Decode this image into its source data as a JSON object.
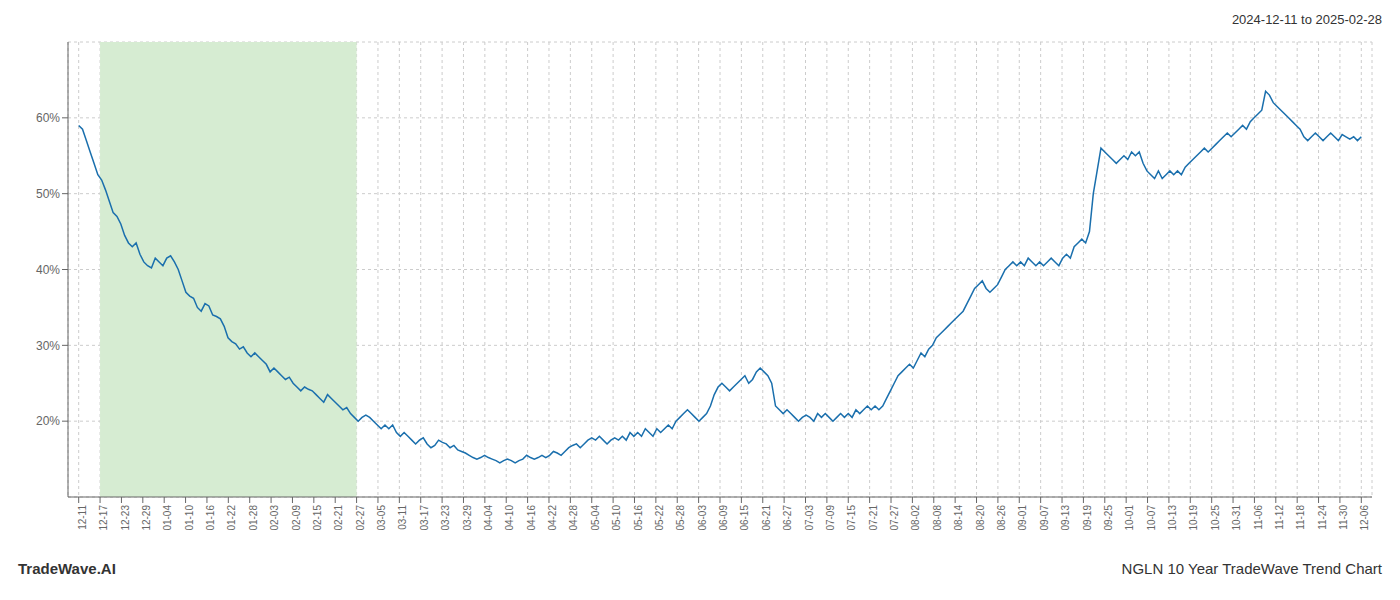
{
  "chart_data": {
    "type": "line",
    "title": "NGLN 10 Year TradeWave Trend Chart",
    "subtitle": "2024-12-11 to 2025-02-28",
    "annotations": [
      "TradeWave.AI"
    ],
    "color": "#1a6fad",
    "grid": true,
    "xlim": [
      -0.5,
      60.5
    ],
    "xticks": [
      {
        "value": 0,
        "label": "12-11"
      },
      {
        "value": 1,
        "label": "12-17"
      },
      {
        "value": 2,
        "label": "12-23"
      },
      {
        "value": 3,
        "label": "12-29"
      },
      {
        "value": 4,
        "label": "01-04"
      },
      {
        "value": 5,
        "label": "01-10"
      },
      {
        "value": 6,
        "label": "01-16"
      },
      {
        "value": 7,
        "label": "01-22"
      },
      {
        "value": 8,
        "label": "01-28"
      },
      {
        "value": 9,
        "label": "02-03"
      },
      {
        "value": 10,
        "label": "02-09"
      },
      {
        "value": 11,
        "label": "02-15"
      },
      {
        "value": 12,
        "label": "02-21"
      },
      {
        "value": 13,
        "label": "02-27"
      },
      {
        "value": 14,
        "label": "03-05"
      },
      {
        "value": 15,
        "label": "03-11"
      },
      {
        "value": 16,
        "label": "03-17"
      },
      {
        "value": 17,
        "label": "03-23"
      },
      {
        "value": 18,
        "label": "03-29"
      },
      {
        "value": 19,
        "label": "04-04"
      },
      {
        "value": 20,
        "label": "04-10"
      },
      {
        "value": 21,
        "label": "04-16"
      },
      {
        "value": 22,
        "label": "04-22"
      },
      {
        "value": 23,
        "label": "04-28"
      },
      {
        "value": 24,
        "label": "05-04"
      },
      {
        "value": 25,
        "label": "05-10"
      },
      {
        "value": 26,
        "label": "05-16"
      },
      {
        "value": 27,
        "label": "05-22"
      },
      {
        "value": 28,
        "label": "05-28"
      },
      {
        "value": 29,
        "label": "06-03"
      },
      {
        "value": 30,
        "label": "06-09"
      },
      {
        "value": 31,
        "label": "06-15"
      },
      {
        "value": 32,
        "label": "06-21"
      },
      {
        "value": 33,
        "label": "06-27"
      },
      {
        "value": 34,
        "label": "07-03"
      },
      {
        "value": 35,
        "label": "07-09"
      },
      {
        "value": 36,
        "label": "07-15"
      },
      {
        "value": 37,
        "label": "07-21"
      },
      {
        "value": 38,
        "label": "07-27"
      },
      {
        "value": 39,
        "label": "08-02"
      },
      {
        "value": 40,
        "label": "08-08"
      },
      {
        "value": 41,
        "label": "08-14"
      },
      {
        "value": 42,
        "label": "08-20"
      },
      {
        "value": 43,
        "label": "08-26"
      },
      {
        "value": 44,
        "label": "09-01"
      },
      {
        "value": 45,
        "label": "09-07"
      },
      {
        "value": 46,
        "label": "09-13"
      },
      {
        "value": 47,
        "label": "09-19"
      },
      {
        "value": 48,
        "label": "09-25"
      },
      {
        "value": 49,
        "label": "10-01"
      },
      {
        "value": 50,
        "label": "10-07"
      },
      {
        "value": 51,
        "label": "10-13"
      },
      {
        "value": 52,
        "label": "10-19"
      },
      {
        "value": 53,
        "label": "10-25"
      },
      {
        "value": 54,
        "label": "10-31"
      },
      {
        "value": 55,
        "label": "11-06"
      },
      {
        "value": 56,
        "label": "11-12"
      },
      {
        "value": 57,
        "label": "11-18"
      },
      {
        "value": 58,
        "label": "11-24"
      },
      {
        "value": 59,
        "label": "11-30"
      },
      {
        "value": 60,
        "label": "12-06"
      }
    ],
    "ylim": [
      10,
      70
    ],
    "yticks": [
      {
        "value": 20,
        "label": "20%"
      },
      {
        "value": 30,
        "label": "30%"
      },
      {
        "value": 40,
        "label": "40%"
      },
      {
        "value": 50,
        "label": "50%"
      },
      {
        "value": 60,
        "label": "60%"
      }
    ],
    "shade": {
      "x": [
        1,
        13
      ],
      "color": "#d6ecd2"
    },
    "values": [
      59.0,
      58.5,
      57.0,
      55.5,
      54.0,
      52.5,
      51.8,
      50.5,
      49.0,
      47.5,
      47.0,
      46.0,
      44.5,
      43.5,
      43.0,
      43.5,
      42.0,
      41.0,
      40.5,
      40.2,
      41.5,
      41.0,
      40.5,
      41.5,
      41.8,
      41.0,
      40.0,
      38.5,
      37.0,
      36.5,
      36.2,
      35.0,
      34.5,
      35.5,
      35.2,
      34.0,
      33.8,
      33.5,
      32.5,
      31.0,
      30.5,
      30.2,
      29.5,
      29.8,
      29.0,
      28.5,
      29.0,
      28.5,
      28.0,
      27.5,
      26.5,
      27.0,
      26.5,
      26.0,
      25.5,
      25.8,
      25.0,
      24.5,
      24.0,
      24.5,
      24.2,
      24.0,
      23.5,
      23.0,
      22.5,
      23.5,
      23.0,
      22.5,
      22.0,
      21.5,
      21.8,
      21.0,
      20.5,
      20.0,
      20.5,
      20.8,
      20.5,
      20.0,
      19.5,
      19.0,
      19.5,
      19.0,
      19.5,
      18.5,
      18.0,
      18.5,
      18.0,
      17.5,
      17.0,
      17.5,
      17.8,
      17.0,
      16.5,
      16.8,
      17.5,
      17.2,
      17.0,
      16.5,
      16.8,
      16.2,
      16.0,
      15.8,
      15.5,
      15.2,
      15.0,
      15.2,
      15.5,
      15.2,
      15.0,
      14.8,
      14.5,
      14.8,
      15.0,
      14.8,
      14.5,
      14.8,
      15.0,
      15.5,
      15.2,
      15.0,
      15.2,
      15.5,
      15.2,
      15.5,
      16.0,
      15.8,
      15.5,
      16.0,
      16.5,
      16.8,
      17.0,
      16.5,
      17.0,
      17.5,
      17.8,
      17.5,
      18.0,
      17.5,
      17.0,
      17.5,
      17.8,
      17.5,
      18.0,
      17.5,
      18.5,
      18.0,
      18.5,
      18.0,
      19.0,
      18.5,
      18.0,
      19.0,
      18.5,
      19.0,
      19.5,
      19.0,
      20.0,
      20.5,
      21.0,
      21.5,
      21.0,
      20.5,
      20.0,
      20.5,
      21.0,
      22.0,
      23.5,
      24.5,
      25.0,
      24.5,
      24.0,
      24.5,
      25.0,
      25.5,
      26.0,
      25.0,
      25.5,
      26.5,
      27.0,
      26.5,
      26.0,
      25.0,
      22.0,
      21.5,
      21.0,
      21.5,
      21.0,
      20.5,
      20.0,
      20.5,
      20.8,
      20.5,
      20.0,
      21.0,
      20.5,
      21.0,
      20.5,
      20.0,
      20.5,
      21.0,
      20.5,
      21.0,
      20.5,
      21.5,
      21.0,
      21.5,
      22.0,
      21.5,
      22.0,
      21.5,
      22.0,
      23.0,
      24.0,
      25.0,
      26.0,
      26.5,
      27.0,
      27.5,
      27.0,
      28.0,
      29.0,
      28.5,
      29.5,
      30.0,
      31.0,
      31.5,
      32.0,
      32.5,
      33.0,
      33.5,
      34.0,
      34.5,
      35.5,
      36.5,
      37.5,
      38.0,
      38.5,
      37.5,
      37.0,
      37.5,
      38.0,
      39.0,
      40.0,
      40.5,
      41.0,
      40.5,
      41.0,
      40.5,
      41.5,
      41.0,
      40.5,
      41.0,
      40.5,
      41.0,
      41.5,
      41.0,
      40.5,
      41.5,
      42.0,
      41.5,
      43.0,
      43.5,
      44.0,
      43.5,
      45.0,
      50.0,
      53.0,
      56.0,
      55.5,
      55.0,
      54.5,
      54.0,
      54.5,
      55.0,
      54.5,
      55.5,
      55.0,
      55.5,
      54.0,
      53.0,
      52.5,
      52.0,
      53.0,
      52.0,
      52.5,
      53.0,
      52.5,
      53.0,
      52.5,
      53.5,
      54.0,
      54.5,
      55.0,
      55.5,
      56.0,
      55.5,
      56.0,
      56.5,
      57.0,
      57.5,
      58.0,
      57.5,
      58.0,
      58.5,
      59.0,
      58.5,
      59.5,
      60.0,
      60.5,
      61.0,
      63.5,
      63.0,
      62.0,
      61.5,
      61.0,
      60.5,
      60.0,
      59.5,
      59.0,
      58.5,
      57.5,
      57.0,
      57.5,
      58.0,
      57.5,
      57.0,
      57.5,
      58.0,
      57.5,
      57.0,
      57.8,
      57.5,
      57.2,
      57.5,
      57.0,
      57.5
    ]
  }
}
